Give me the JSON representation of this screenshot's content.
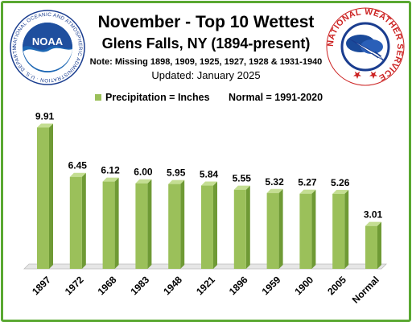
{
  "title": "November - Top 10 Wettest",
  "subtitle": "Glens Falls, NY (1894-present)",
  "note": "Note: Missing  1898, 1909, 1925, 1927, 1928 & 1931-1940",
  "updated": "Updated: January 2025",
  "legend": {
    "series_label": "Precipitation = Inches",
    "normal_label": "Normal = 1991-2020"
  },
  "logos": {
    "noaa_text": "NOAA",
    "noaa_ring_text": "NATIONAL OCEANIC AND ATMOSPHERIC ADMINISTRATION · U.S. DEPARTMENT OF COMMERCE",
    "nws_ring_text": "NATIONAL WEATHER SERVICE"
  },
  "colors": {
    "bar_front": "#9bc05a",
    "bar_side": "#6f9a35",
    "bar_top": "#c4de92",
    "border": "#5aa832"
  },
  "chart_data": {
    "type": "bar",
    "categories": [
      "1897",
      "1972",
      "1968",
      "1983",
      "1948",
      "1921",
      "1896",
      "1959",
      "1900",
      "2005",
      "Normal"
    ],
    "values": [
      9.91,
      6.45,
      6.12,
      6.0,
      5.95,
      5.84,
      5.55,
      5.32,
      5.27,
      5.26,
      3.01
    ],
    "data_labels": [
      "9.91",
      "6.45",
      "6.12",
      "6.00",
      "5.95",
      "5.84",
      "5.55",
      "5.32",
      "5.27",
      "5.26",
      "3.01"
    ],
    "ylim": [
      0,
      10.5
    ],
    "grid": false,
    "legend_position": "top-center"
  }
}
